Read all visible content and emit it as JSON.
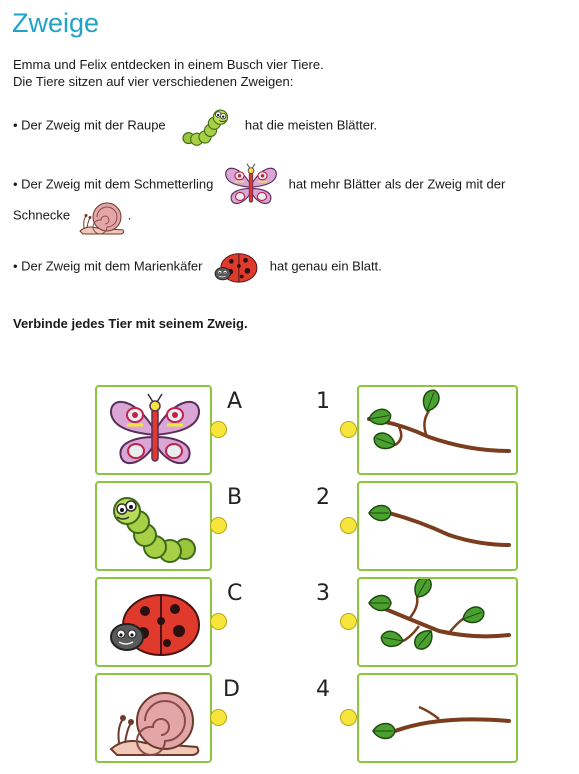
{
  "title": "Zweige",
  "intro": {
    "line1": "Emma und Felix entdecken in einem Busch vier Tiere.",
    "line2": "Die Tiere sitzen auf vier verschiedenen Zweigen:"
  },
  "clues": {
    "c1": {
      "before": "• Der Zweig mit der Raupe",
      "after": "hat die meisten Blätter."
    },
    "c2": {
      "before": "• Der Zweig mit dem Schmetterling",
      "after": "hat mehr Blätter als der Zweig mit der",
      "line2": "Schnecke",
      "end": "."
    },
    "c3": {
      "before": "• Der Zweig mit dem Marienkäfer",
      "after": "hat genau ein Blatt."
    }
  },
  "instruction": "Verbinde jedes Tier mit seinem Zweig.",
  "animals": [
    {
      "label": "A",
      "icon": "butterfly-icon"
    },
    {
      "label": "B",
      "icon": "caterpillar-icon"
    },
    {
      "label": "C",
      "icon": "ladybug-icon"
    },
    {
      "label": "D",
      "icon": "snail-icon"
    }
  ],
  "branches": [
    {
      "label": "1",
      "leaves": 3
    },
    {
      "label": "2",
      "leaves": 1
    },
    {
      "label": "3",
      "leaves": 5
    },
    {
      "label": "4",
      "leaves": 1
    }
  ],
  "colors": {
    "title": "#1fa3c9",
    "border": "#8cc63f",
    "dot": "#f6e63b",
    "leaf": "#4aa12f",
    "branch": "#7a3d1e"
  }
}
